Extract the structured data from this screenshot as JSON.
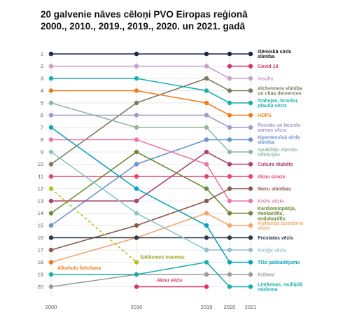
{
  "chart_data": {
    "type": "line",
    "title": "20 galvenie nāves cēloņi PVO Eiropas reģionā 2000., 2010., 2019., 2019., 2020. un 2021. gadā",
    "x": [
      "2000",
      "2010",
      "2019",
      "2020",
      "2021"
    ],
    "y_ticks": [
      "1",
      "2",
      "3",
      "4",
      "5",
      "6",
      "7",
      "8",
      "9",
      "10",
      "11",
      "12",
      "13",
      "14",
      "15",
      "16",
      "17",
      "18",
      "19",
      "20"
    ],
    "ylim": [
      1,
      20
    ],
    "y_reversed": true,
    "grid": "horizontal",
    "series": [
      {
        "name": "Išēmiskā sirds slimība",
        "color": "#1c2452",
        "values": [
          1,
          1,
          1,
          1,
          1
        ]
      },
      {
        "name": "Covid-19",
        "color": "#d6336c",
        "values": [
          null,
          null,
          null,
          2,
          2
        ]
      },
      {
        "name": "Insults",
        "color": "#c9a0c9",
        "values": [
          2,
          2,
          2,
          3,
          3
        ]
      },
      {
        "name": "Alcheimera slimība un citas demences",
        "color": "#7b7b63",
        "values": [
          10,
          5,
          3,
          4,
          4
        ]
      },
      {
        "name": "Trahejas, bronhu, plaušu vēzis",
        "color": "#1aaeae",
        "values": [
          3,
          3,
          4,
          5,
          5
        ]
      },
      {
        "name": "HOPS",
        "color": "#f07d1c",
        "values": [
          4,
          4,
          5,
          6,
          6
        ]
      },
      {
        "name": "Resnās un taisnās zarnas vēzis",
        "color": "#9f98c9",
        "values": [
          6,
          6,
          6,
          7,
          7
        ]
      },
      {
        "name": "Hipertensīvā sirds slimība",
        "color": "#6b94cc",
        "values": [
          15,
          10,
          8,
          8,
          8
        ]
      },
      {
        "name": "Apakšējo elpceļu infekcijas",
        "color": "#8fb89f",
        "values": [
          5,
          7,
          7,
          9,
          9
        ]
      },
      {
        "name": "Cukura diabēts",
        "color": "#a9426e",
        "values": [
          13,
          13,
          9,
          10,
          10
        ]
      },
      {
        "name": "Aknu ciroze",
        "color": "#e8466a",
        "values": [
          11,
          11,
          11,
          11,
          11
        ]
      },
      {
        "name": "Nieru slimības",
        "color": "#8b5a4a",
        "values": [
          17,
          15,
          13,
          12,
          12
        ]
      },
      {
        "name": "Krūts vēzis",
        "color": "#e879a8",
        "values": [
          8,
          8,
          10,
          13,
          13
        ]
      },
      {
        "name": "Kardiomiopātija, miokardīts, endokardīts",
        "color": "#6e8a3a",
        "values": [
          14,
          9,
          12,
          14,
          14
        ]
      },
      {
        "name": "Aizkuņģa dziedzera vēzis",
        "color": "#f4a66a",
        "values": [
          18,
          16,
          14,
          15,
          15
        ]
      },
      {
        "name": "Prostatas vēzis",
        "color": "#2d3a4a",
        "values": [
          16,
          16,
          16,
          16,
          16
        ]
      },
      {
        "name": "Kuņģa vēzis",
        "color": "#8ec3cc",
        "values": [
          9,
          14,
          17,
          17,
          17
        ]
      },
      {
        "name": "Tīšs paškaitējums",
        "color": "#0aa2c0",
        "values": [
          7,
          12,
          15,
          18,
          18
        ]
      },
      {
        "name": "Kritieni",
        "color": "#9a9aa0",
        "values": [
          20,
          19,
          19,
          19,
          19
        ]
      },
      {
        "name": "Limfomas, multiplā mieloma",
        "color": "#1aaeae",
        "values": [
          19,
          19,
          18,
          20,
          20
        ]
      }
    ],
    "exited_series": [
      {
        "name": "Alkoholu lietošana",
        "color": "#f07d1c",
        "values": [
          18,
          null,
          null,
          null,
          null
        ]
      },
      {
        "name": "Satiksmes traumas",
        "color": "#b5c21d",
        "values": [
          12,
          18,
          null,
          null,
          null
        ],
        "line_style": "dashed"
      },
      {
        "name": "Aknu vēzis",
        "color": "#d6336c",
        "values": [
          null,
          20,
          20,
          null,
          null
        ]
      }
    ]
  }
}
